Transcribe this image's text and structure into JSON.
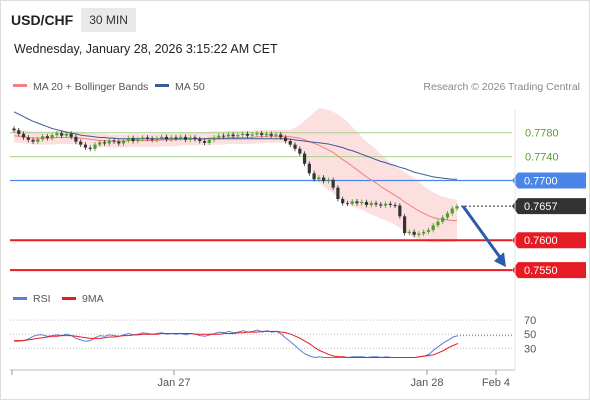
{
  "header": {
    "symbol": "USD/CHF",
    "timeframe": "30 MIN",
    "timestamp": "Wednesday, January 28, 2026 3:15:22 AM CET"
  },
  "legend": {
    "ma20": "MA 20 + Bollinger Bands",
    "ma50": "MA 50",
    "rsi": "RSI",
    "ma9": "9MA",
    "credit": "Research © 2026 Trading Central"
  },
  "colors": {
    "ma20": "#f08080",
    "bands": "#fbd9d9",
    "ma50": "#3a5a98",
    "green_level": "#a8d08d",
    "green_text": "#5a9e2f",
    "blue_level": "#4a86e8",
    "red_level": "#e51c23",
    "current": "#333333",
    "arrow": "#2a5caa",
    "rsi": "#5b7fd6",
    "rsi_ma": "#e51c23",
    "candle_up": "#4aa02c",
    "candle_down": "#333333"
  },
  "chart_data": [
    {
      "type": "candlestick",
      "ylim": [
        0.7525,
        0.7818
      ],
      "x_ticks": [
        "Jan 27",
        "Jan 28",
        "Feb 4"
      ],
      "levels": [
        {
          "value": 0.778,
          "label": "0.7780",
          "kind": "resistance"
        },
        {
          "value": 0.774,
          "label": "0.7740",
          "kind": "resistance"
        },
        {
          "value": 0.77,
          "label": "0.7700",
          "kind": "pivot"
        },
        {
          "value": 0.7657,
          "label": "0.7657",
          "kind": "current"
        },
        {
          "value": 0.76,
          "label": "0.7600",
          "kind": "support"
        },
        {
          "value": 0.755,
          "label": "0.7550",
          "kind": "support"
        }
      ],
      "forecast_arrow": {
        "from": 0.7657,
        "to": 0.7555
      },
      "close": [
        0.7784,
        0.7778,
        0.7772,
        0.7768,
        0.7765,
        0.7769,
        0.7774,
        0.7771,
        0.7776,
        0.7779,
        0.7775,
        0.7778,
        0.7773,
        0.7765,
        0.776,
        0.7755,
        0.7753,
        0.776,
        0.7764,
        0.7762,
        0.7767,
        0.7765,
        0.7762,
        0.7767,
        0.7771,
        0.7766,
        0.7769,
        0.7772,
        0.777,
        0.7768,
        0.7771,
        0.7773,
        0.7769,
        0.7772,
        0.7771,
        0.7773,
        0.7768,
        0.7772,
        0.7769,
        0.7766,
        0.7763,
        0.7768,
        0.7772,
        0.7775,
        0.7774,
        0.7777,
        0.7774,
        0.7776,
        0.7778,
        0.7775,
        0.7777,
        0.7779,
        0.7776,
        0.7778,
        0.7775,
        0.7777,
        0.7772,
        0.7766,
        0.776,
        0.7753,
        0.7745,
        0.7728,
        0.7712,
        0.7702,
        0.7705,
        0.7699,
        0.7701,
        0.7688,
        0.7669,
        0.7662,
        0.7661,
        0.7665,
        0.7662,
        0.7664,
        0.7659,
        0.7662,
        0.766,
        0.7658,
        0.7661,
        0.7659,
        0.7658,
        0.764,
        0.7612,
        0.7614,
        0.7609,
        0.7611,
        0.7614,
        0.7617,
        0.7625,
        0.7631,
        0.7638,
        0.7645,
        0.7653,
        0.7657
      ],
      "ma20": [
        0.7775,
        0.7774,
        0.7773,
        0.7772,
        0.7771,
        0.7771,
        0.7771,
        0.7771,
        0.7771,
        0.7772,
        0.7772,
        0.7772,
        0.7772,
        0.7771,
        0.7771,
        0.777,
        0.7769,
        0.7768,
        0.7767,
        0.7767,
        0.7766,
        0.7766,
        0.7766,
        0.7766,
        0.7767,
        0.7767,
        0.7767,
        0.7767,
        0.7767,
        0.7767,
        0.7767,
        0.7768,
        0.7768,
        0.7768,
        0.7768,
        0.7769,
        0.777,
        0.777,
        0.777,
        0.777,
        0.777,
        0.7771,
        0.7771,
        0.7771,
        0.7771,
        0.7772,
        0.7772,
        0.7772,
        0.7772,
        0.7772,
        0.7772,
        0.7773,
        0.7773,
        0.7774,
        0.7774,
        0.7774,
        0.7774,
        0.7774,
        0.7773,
        0.7772,
        0.7771,
        0.7768,
        0.7765,
        0.7762,
        0.7759,
        0.7755,
        0.7751,
        0.7747,
        0.7741,
        0.7735,
        0.773,
        0.7724,
        0.7718,
        0.7712,
        0.7706,
        0.7701,
        0.7696,
        0.769,
        0.7685,
        0.768,
        0.7675,
        0.767,
        0.7664,
        0.7659,
        0.7654,
        0.7649,
        0.7645,
        0.7641,
        0.7638,
        0.7636,
        0.7635,
        0.7634,
        0.7633,
        0.7633
      ],
      "ma50": [
        0.7815,
        0.7811,
        0.7807,
        0.7803,
        0.7799,
        0.7796,
        0.7793,
        0.779,
        0.7787,
        0.7785,
        0.7783,
        0.7781,
        0.7779,
        0.7778,
        0.7776,
        0.7775,
        0.7774,
        0.7773,
        0.7772,
        0.7772,
        0.7771,
        0.7771,
        0.777,
        0.777,
        0.777,
        0.777,
        0.777,
        0.777,
        0.777,
        0.777,
        0.777,
        0.777,
        0.777,
        0.777,
        0.777,
        0.777,
        0.777,
        0.777,
        0.777,
        0.777,
        0.777,
        0.777,
        0.777,
        0.777,
        0.777,
        0.777,
        0.777,
        0.777,
        0.777,
        0.777,
        0.777,
        0.777,
        0.777,
        0.777,
        0.777,
        0.777,
        0.777,
        0.777,
        0.7769,
        0.7768,
        0.7767,
        0.7766,
        0.7765,
        0.7764,
        0.7763,
        0.7762,
        0.7761,
        0.7759,
        0.7757,
        0.7755,
        0.7752,
        0.775,
        0.7747,
        0.7744,
        0.7741,
        0.7738,
        0.7735,
        0.7732,
        0.773,
        0.7727,
        0.7725,
        0.7722,
        0.772,
        0.7717,
        0.7714,
        0.7712,
        0.771,
        0.7708,
        0.7706,
        0.7705,
        0.7704,
        0.7703,
        0.7702,
        0.7702
      ],
      "band_half_width": [
        0.0011,
        0.0011,
        0.0011,
        0.0011,
        0.0011,
        0.0011,
        0.0011,
        0.0011,
        0.0011,
        0.0011,
        0.0011,
        0.0011,
        0.0011,
        0.0011,
        0.0011,
        0.0011,
        0.0011,
        0.0011,
        0.0011,
        0.0011,
        0.0011,
        0.0011,
        0.0011,
        0.0011,
        0.0011,
        0.0011,
        0.0011,
        0.0011,
        0.0011,
        0.0011,
        0.0011,
        0.0011,
        0.0011,
        0.0011,
        0.0011,
        0.0011,
        0.0011,
        0.0011,
        0.0011,
        0.0011,
        0.0011,
        0.0011,
        0.0011,
        0.0011,
        0.0011,
        0.0011,
        0.0011,
        0.0011,
        0.0011,
        0.0011,
        0.0011,
        0.0011,
        0.0011,
        0.0011,
        0.0011,
        0.0011,
        0.0011,
        0.0011,
        0.0012,
        0.0016,
        0.0022,
        0.0032,
        0.0042,
        0.0052,
        0.0062,
        0.0065,
        0.0067,
        0.0068,
        0.007,
        0.007,
        0.0068,
        0.0066,
        0.0064,
        0.0061,
        0.0059,
        0.0058,
        0.0056,
        0.0054,
        0.0052,
        0.005,
        0.0049,
        0.0049,
        0.005,
        0.005,
        0.005,
        0.0049,
        0.0046,
        0.0044,
        0.0042,
        0.004,
        0.0038,
        0.0037,
        0.0036,
        0.0035
      ]
    },
    {
      "type": "line",
      "title": "RSI",
      "ylim": [
        5,
        80
      ],
      "y_ticks": [
        70,
        50,
        30
      ],
      "rsi": [
        40,
        40,
        41,
        43,
        47,
        49,
        49,
        47,
        48,
        49,
        48,
        50,
        48,
        44,
        42,
        40,
        41,
        45,
        48,
        47,
        49,
        48,
        47,
        49,
        51,
        49,
        50,
        52,
        51,
        50,
        51,
        52,
        50,
        51,
        50,
        51,
        49,
        51,
        50,
        48,
        47,
        49,
        51,
        53,
        52,
        54,
        52,
        53,
        55,
        53,
        54,
        56,
        53,
        55,
        53,
        54,
        50,
        44,
        39,
        33,
        27,
        22,
        19,
        17,
        18,
        17,
        17,
        17,
        17,
        17,
        17,
        18,
        18,
        18,
        17,
        18,
        18,
        17,
        18,
        17,
        17,
        17,
        17,
        17,
        17,
        18,
        19,
        22,
        28,
        33,
        38,
        42,
        46,
        48
      ],
      "rsi_ma": [
        41,
        41,
        41,
        42,
        43,
        44,
        45,
        46,
        47,
        47,
        48,
        48,
        48,
        47,
        46,
        45,
        44,
        44,
        44,
        45,
        46,
        46,
        47,
        48,
        48,
        49,
        49,
        50,
        50,
        50,
        50,
        51,
        51,
        51,
        51,
        51,
        51,
        51,
        50,
        50,
        50,
        50,
        50,
        50,
        51,
        51,
        51,
        52,
        52,
        53,
        53,
        53,
        54,
        54,
        54,
        54,
        53,
        52,
        50,
        47,
        44,
        40,
        36,
        31,
        27,
        24,
        21,
        19,
        18,
        18,
        17,
        17,
        17,
        17,
        17,
        17,
        17,
        17,
        17,
        17,
        17,
        17,
        17,
        17,
        17,
        18,
        19,
        20,
        21,
        24,
        27,
        31,
        34,
        37
      ]
    }
  ]
}
